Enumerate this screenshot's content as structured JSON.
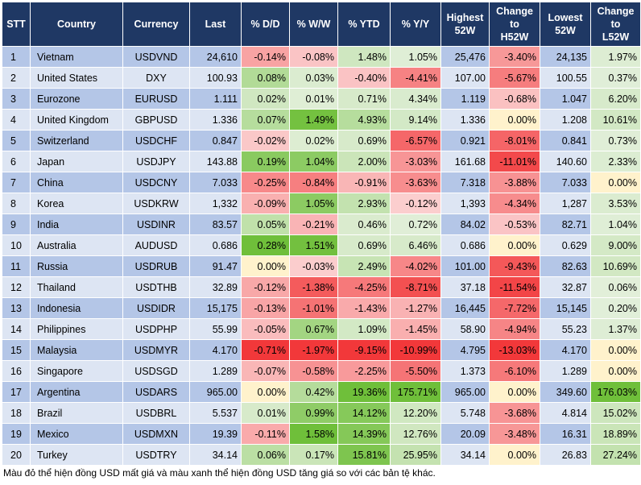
{
  "table": {
    "headers": [
      "STT",
      "Country",
      "Currency",
      "Last",
      "% D/D",
      "% W/W",
      "% YTD",
      "% Y/Y",
      "Highest\n52W",
      "Change\nto\nH52W",
      "Lowest\n52W",
      "Change\nto\nL52W"
    ],
    "rows": [
      [
        "1",
        "Vietnam",
        "USDVND",
        "24,610",
        "-0.14%",
        "-0.08%",
        "1.48%",
        "1.05%",
        "25,476",
        "-3.40%",
        "24,135",
        "1.97%"
      ],
      [
        "2",
        "United States",
        "DXY",
        "100.93",
        "0.08%",
        "0.03%",
        "-0.40%",
        "-4.41%",
        "107.00",
        "-5.67%",
        "100.55",
        "0.37%"
      ],
      [
        "3",
        "Eurozone",
        "EURUSD",
        "1.111",
        "0.02%",
        "0.01%",
        "0.71%",
        "4.34%",
        "1.119",
        "-0.68%",
        "1.047",
        "6.20%"
      ],
      [
        "4",
        "United Kingdom",
        "GBPUSD",
        "1.336",
        "0.07%",
        "1.49%",
        "4.93%",
        "9.14%",
        "1.336",
        "0.00%",
        "1.208",
        "10.61%"
      ],
      [
        "5",
        "Switzerland",
        "USDCHF",
        "0.847",
        "-0.02%",
        "0.02%",
        "0.69%",
        "-6.57%",
        "0.921",
        "-8.01%",
        "0.841",
        "0.73%"
      ],
      [
        "6",
        "Japan",
        "USDJPY",
        "143.88",
        "0.19%",
        "1.04%",
        "2.00%",
        "-3.03%",
        "161.68",
        "-11.01%",
        "140.60",
        "2.33%"
      ],
      [
        "7",
        "China",
        "USDCNY",
        "7.033",
        "-0.25%",
        "-0.84%",
        "-0.91%",
        "-3.63%",
        "7.318",
        "-3.88%",
        "7.033",
        "0.00%"
      ],
      [
        "8",
        "Korea",
        "USDKRW",
        "1,332",
        "-0.09%",
        "1.05%",
        "2.93%",
        "-0.12%",
        "1,393",
        "-4.34%",
        "1,287",
        "3.53%"
      ],
      [
        "9",
        "India",
        "USDINR",
        "83.57",
        "0.05%",
        "-0.21%",
        "0.46%",
        "0.72%",
        "84.02",
        "-0.53%",
        "82.71",
        "1.04%"
      ],
      [
        "10",
        "Australia",
        "AUDUSD",
        "0.686",
        "0.28%",
        "1.51%",
        "0.69%",
        "6.46%",
        "0.686",
        "0.00%",
        "0.629",
        "9.00%"
      ],
      [
        "11",
        "Russia",
        "USDRUB",
        "91.47",
        "0.00%",
        "-0.03%",
        "2.49%",
        "-4.02%",
        "101.00",
        "-9.43%",
        "82.63",
        "10.69%"
      ],
      [
        "12",
        "Thailand",
        "USDTHB",
        "32.89",
        "-0.12%",
        "-1.38%",
        "-4.25%",
        "-8.71%",
        "37.18",
        "-11.54%",
        "32.87",
        "0.06%"
      ],
      [
        "13",
        "Indonesia",
        "USDIDR",
        "15,175",
        "-0.13%",
        "-1.01%",
        "-1.43%",
        "-1.27%",
        "16,445",
        "-7.72%",
        "15,145",
        "0.20%"
      ],
      [
        "14",
        "Philippines",
        "USDPHP",
        "55.99",
        "-0.05%",
        "0.67%",
        "1.09%",
        "-1.45%",
        "58.90",
        "-4.94%",
        "55.23",
        "1.37%"
      ],
      [
        "15",
        "Malaysia",
        "USDMYR",
        "4.170",
        "-0.71%",
        "-1.97%",
        "-9.15%",
        "-10.99%",
        "4.795",
        "-13.03%",
        "4.170",
        "0.00%"
      ],
      [
        "16",
        "Singapore",
        "USDSGD",
        "1.289",
        "-0.07%",
        "-0.58%",
        "-2.25%",
        "-5.50%",
        "1.373",
        "-6.10%",
        "1.289",
        "0.00%"
      ],
      [
        "17",
        "Argentina",
        "USDARS",
        "965.00",
        "0.00%",
        "0.42%",
        "19.36%",
        "175.71%",
        "965.00",
        "0.00%",
        "349.60",
        "176.03%"
      ],
      [
        "18",
        "Brazil",
        "USDBRL",
        "5.537",
        "0.01%",
        "0.99%",
        "14.12%",
        "12.20%",
        "5.748",
        "-3.68%",
        "4.814",
        "15.02%"
      ],
      [
        "19",
        "Mexico",
        "USDMXN",
        "19.39",
        "-0.11%",
        "1.58%",
        "14.39%",
        "12.76%",
        "20.09",
        "-3.48%",
        "16.31",
        "18.89%"
      ],
      [
        "20",
        "Turkey",
        "USDTRY",
        "34.14",
        "0.06%",
        "0.17%",
        "15.81%",
        "25.95%",
        "34.14",
        "0.00%",
        "26.83",
        "27.24%"
      ]
    ]
  },
  "colors": {
    "header_bg": "#1f3864",
    "header_text": "#ffffff",
    "row_odd": "#b4c6e7",
    "row_even": "#dde5f3"
  },
  "note": "Màu đỏ thể hiện đồng USD mất giá và màu xanh thể hiện đồng USD tăng giá so với các bản tệ khác."
}
